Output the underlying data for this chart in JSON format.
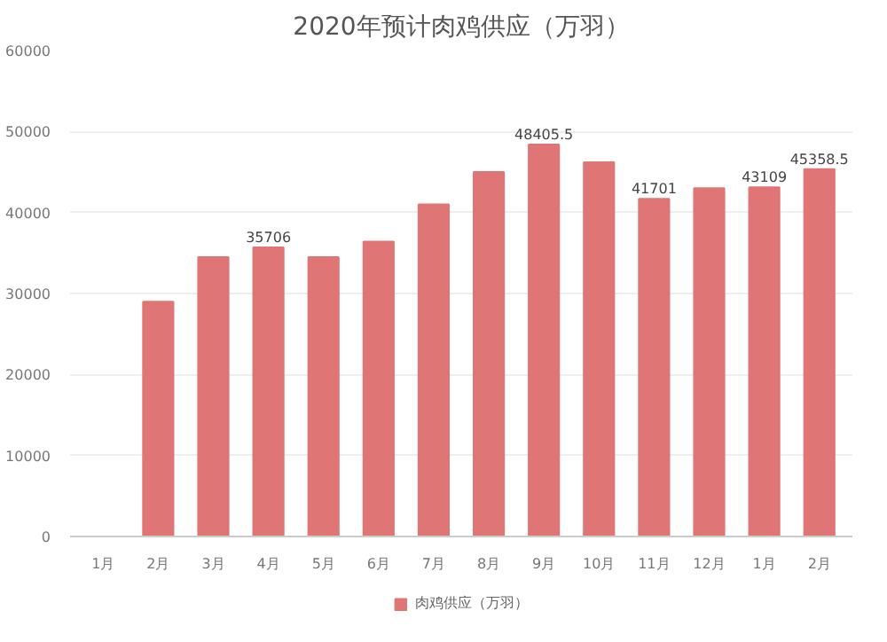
{
  "chart_data": {
    "type": "bar",
    "title": "2020年预计肉鸡供应（万羽）",
    "categories": [
      "1月",
      "2月",
      "3月",
      "4月",
      "5月",
      "6月",
      "7月",
      "8月",
      "9月",
      "10月",
      "11月",
      "12月",
      "1月",
      "2月"
    ],
    "series": [
      {
        "name": "肉鸡供应（万羽）",
        "color": "#e07575",
        "values": [
          null,
          29000,
          34500,
          35706,
          34500,
          36400,
          41000,
          45000,
          48405.5,
          46200,
          41701,
          43000,
          43109,
          45358.5
        ],
        "value_labels": [
          null,
          null,
          null,
          "35706",
          null,
          null,
          null,
          null,
          "48405.5",
          null,
          "41701",
          null,
          "43109",
          "45358.5"
        ]
      }
    ],
    "ylim": [
      0,
      60000
    ],
    "yticks": [
      0,
      10000,
      20000,
      30000,
      40000,
      50000,
      60000
    ],
    "grid": "y",
    "legend": "bottom"
  }
}
